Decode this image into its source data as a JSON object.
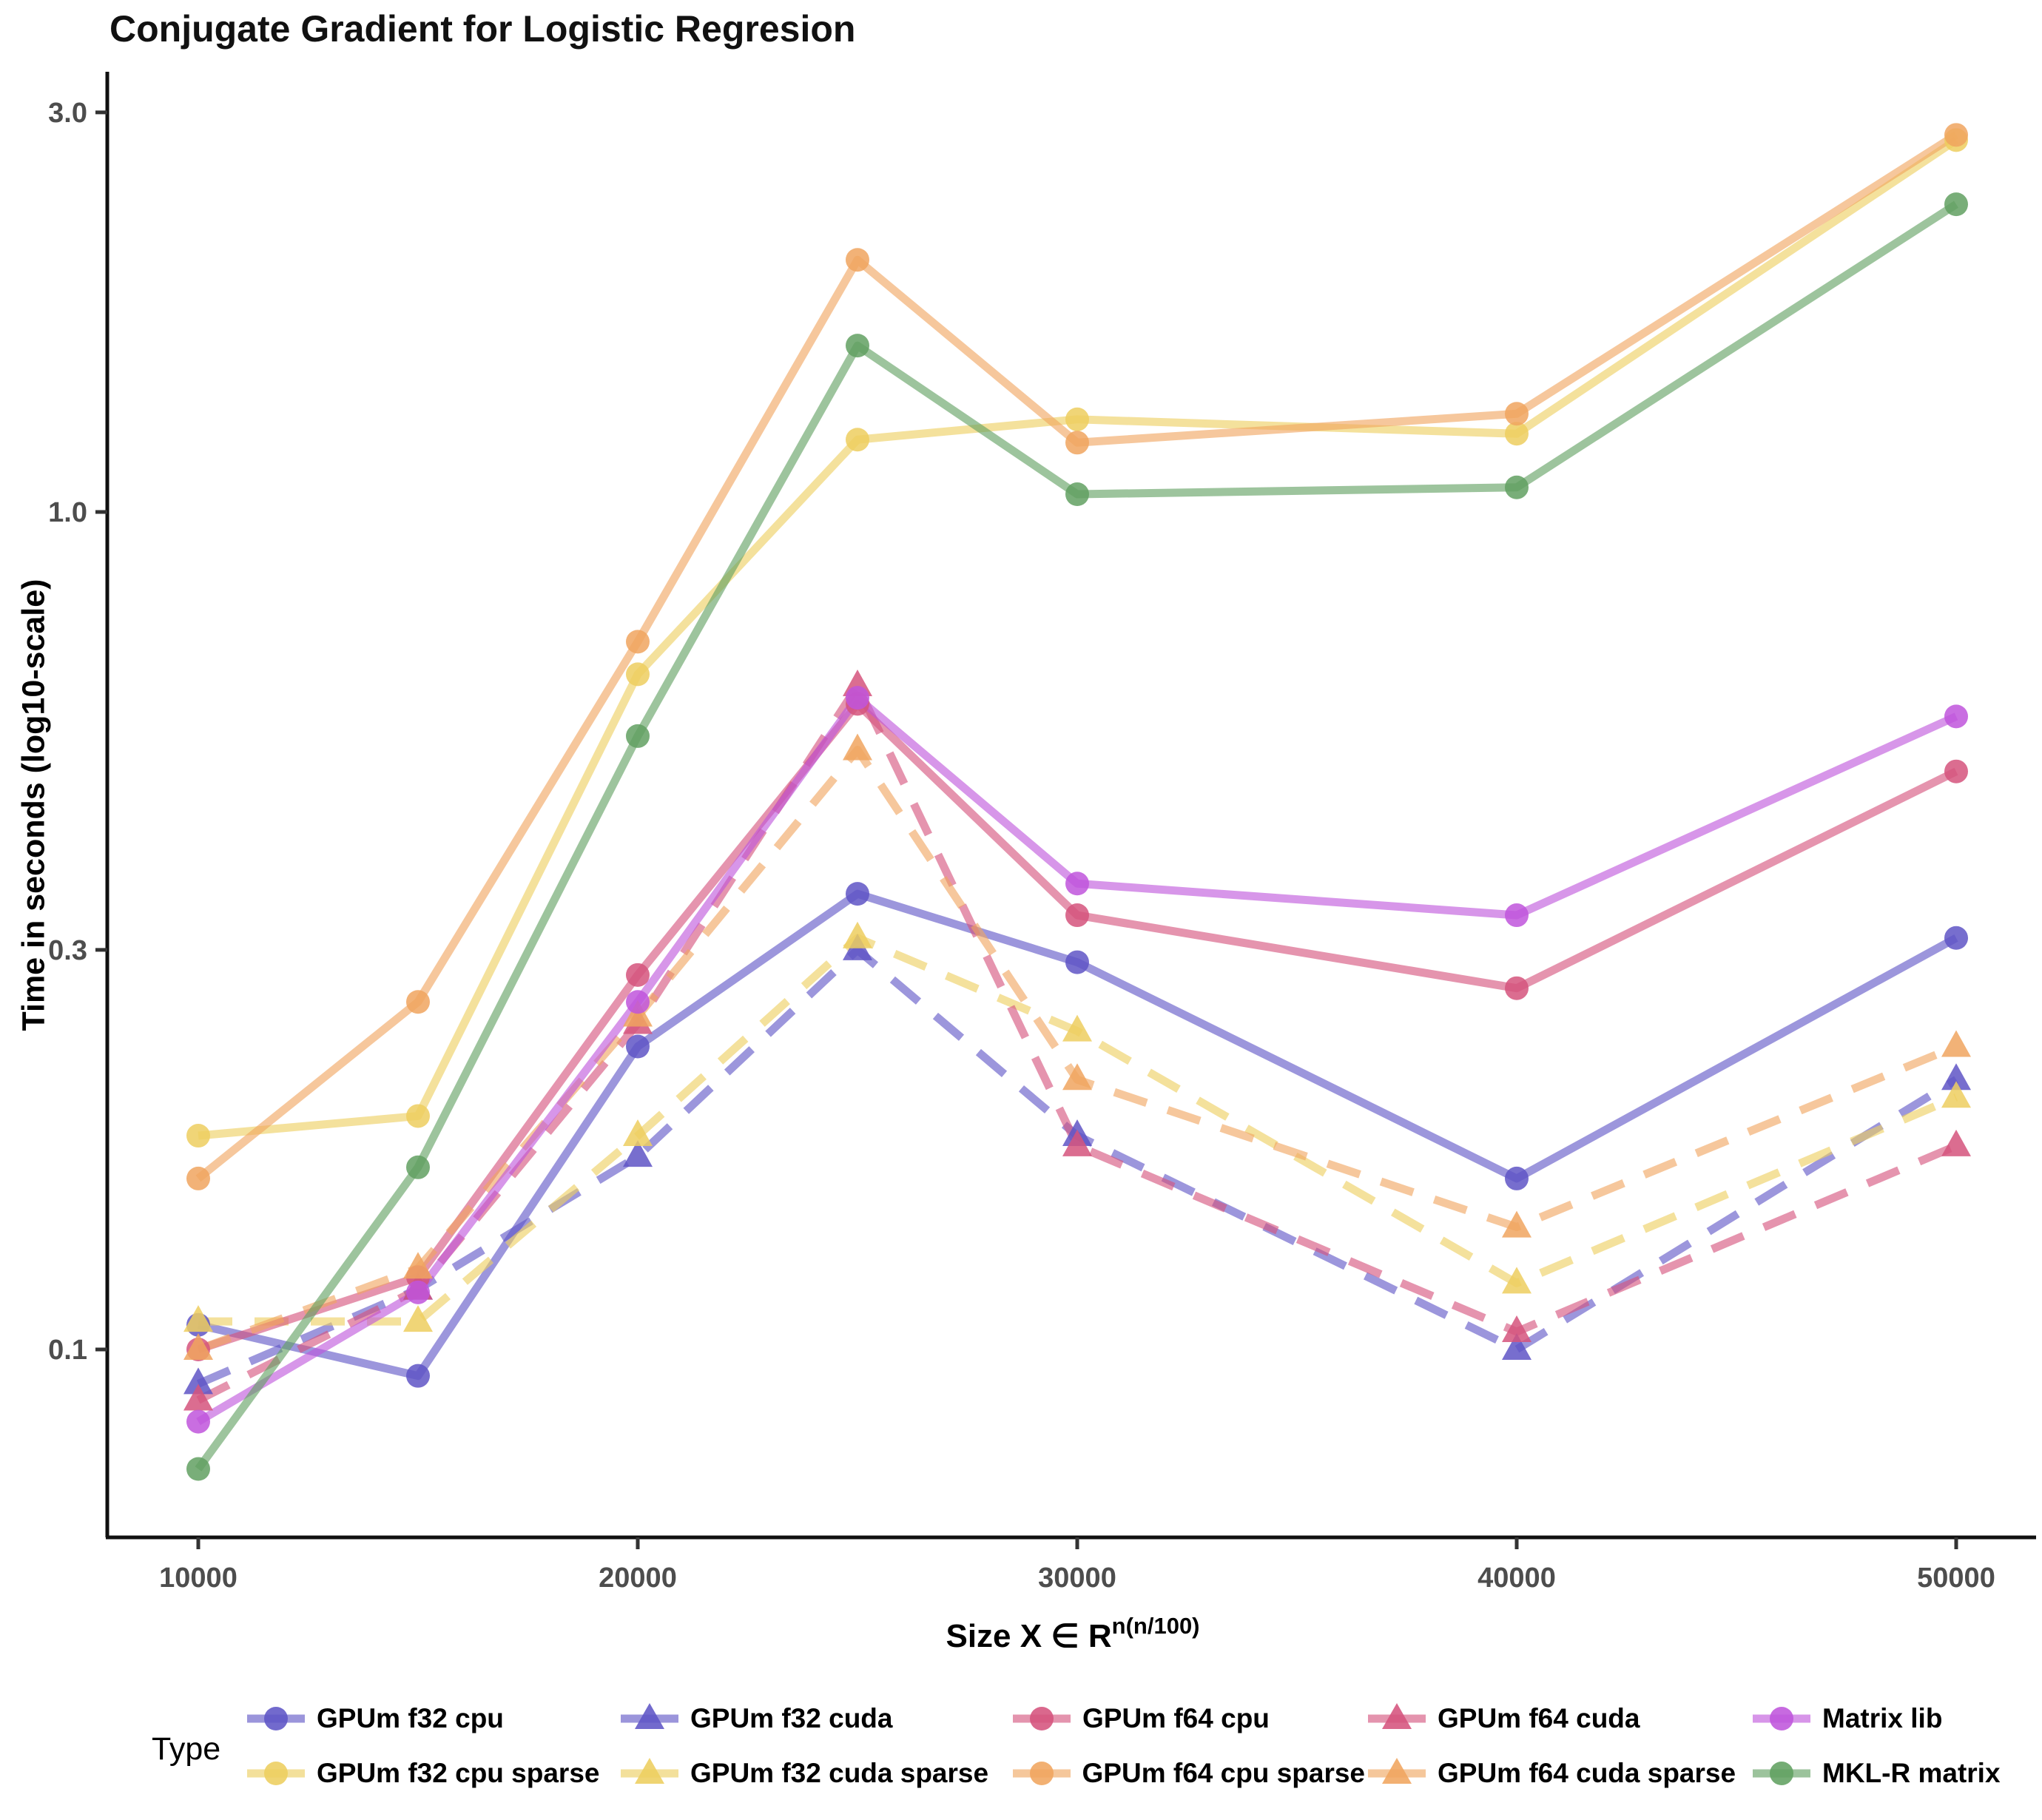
{
  "chart_data": {
    "type": "line",
    "title": "Conjugate Gradient for Logistic Regresion",
    "ylabel": "Time in seconds (log10-scale)",
    "xlabel_base": "Size  X ∈ R",
    "xlabel_sup": "n(n/100)",
    "legend_title": "Type",
    "x_scale": "linear",
    "y_scale": "log10",
    "x_ticks": [
      10000,
      20000,
      30000,
      40000,
      50000
    ],
    "x_tick_labels": [
      "10000",
      "20000",
      "30000",
      "40000",
      "50000"
    ],
    "y_ticks": [
      0.1,
      0.3,
      1.0,
      3.0
    ],
    "y_tick_labels": [
      "0.1",
      "0.3",
      "1.0",
      "3.0"
    ],
    "x": [
      10000,
      15000,
      20000,
      25000,
      30000,
      40000,
      50000
    ],
    "series": [
      {
        "name": "GPUm f32 cpu",
        "color": "#5F55C6",
        "marker": "circle",
        "line": "solid",
        "values": [
          0.107,
          0.093,
          0.23,
          0.35,
          0.29,
          0.16,
          0.31
        ]
      },
      {
        "name": "GPUm f32 cpu sparse",
        "color": "#EDCE5F",
        "marker": "circle",
        "line": "solid",
        "values": [
          0.18,
          0.19,
          0.64,
          1.22,
          1.29,
          1.24,
          2.78
        ]
      },
      {
        "name": "GPUm f32 cuda",
        "color": "#5F55C6",
        "marker": "triangle",
        "line": "dashed",
        "values": [
          0.091,
          0.118,
          0.17,
          0.3,
          0.18,
          0.1,
          0.21
        ]
      },
      {
        "name": "GPUm f32 cuda sparse",
        "color": "#EDCE5F",
        "marker": "triangle",
        "line": "dashed",
        "values": [
          0.108,
          0.108,
          0.18,
          0.31,
          0.24,
          0.12,
          0.2
        ]
      },
      {
        "name": "GPUm f64 cpu",
        "color": "#D5537D",
        "marker": "circle",
        "line": "solid",
        "values": [
          0.1,
          0.122,
          0.28,
          0.59,
          0.33,
          0.27,
          0.49
        ]
      },
      {
        "name": "GPUm f64 cpu sparse",
        "color": "#F0A55F",
        "marker": "circle",
        "line": "solid",
        "values": [
          0.16,
          0.26,
          0.7,
          2.0,
          1.21,
          1.31,
          2.82
        ]
      },
      {
        "name": "GPUm f64 cuda",
        "color": "#D5537D",
        "marker": "triangle",
        "line": "dashed",
        "values": [
          0.087,
          0.118,
          0.245,
          0.62,
          0.175,
          0.105,
          0.175
        ]
      },
      {
        "name": "GPUm f64 cuda sparse",
        "color": "#F0A55F",
        "marker": "triangle",
        "line": "dashed",
        "values": [
          0.1,
          0.125,
          0.25,
          0.52,
          0.21,
          0.14,
          0.23
        ]
      },
      {
        "name": "Matrix lib",
        "color": "#BF55DC",
        "marker": "circle",
        "line": "solid",
        "values": [
          0.082,
          0.117,
          0.26,
          0.6,
          0.36,
          0.33,
          0.57
        ]
      },
      {
        "name": "MKL-R matrix",
        "color": "#61A061",
        "marker": "circle",
        "line": "solid",
        "values": [
          0.072,
          0.165,
          0.54,
          1.58,
          1.05,
          1.07,
          2.33
        ]
      }
    ],
    "legend_order": [
      "GPUm f32 cpu",
      "GPUm f32 cpu sparse",
      "GPUm f32 cuda",
      "GPUm f32 cuda sparse",
      "GPUm f64 cpu",
      "GPUm f64 cpu sparse",
      "GPUm f64 cuda",
      "GPUm f64 cuda sparse",
      "Matrix lib",
      "MKL-R matrix"
    ],
    "style": {
      "line_width": 11,
      "line_opacity": 0.62,
      "marker_opacity": 0.85,
      "marker_radius": 16,
      "dash_pattern": "46 30",
      "axis_color": "#101010",
      "tick_label_color": "#4d4d4d"
    }
  }
}
